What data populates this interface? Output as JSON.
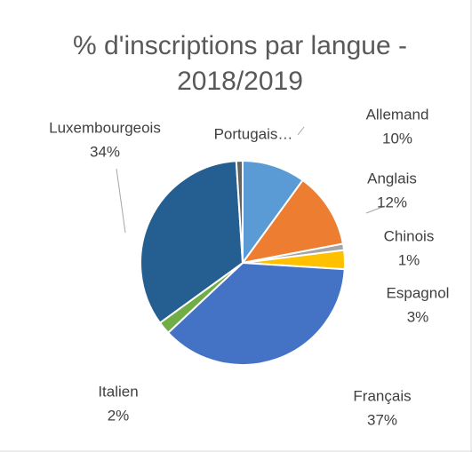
{
  "chart_data": {
    "type": "pie",
    "title": "% d'inscriptions par langue - 2018/2019",
    "categories": [
      "Allemand",
      "Anglais",
      "Chinois",
      "Espagnol",
      "Français",
      "Italien",
      "Luxembourgeois",
      "Portugais…"
    ],
    "values": [
      10,
      12,
      1,
      3,
      37,
      2,
      34,
      1
    ],
    "value_labels": [
      "10%",
      "12%",
      "1%",
      "3%",
      "37%",
      "2%",
      "34%",
      null
    ],
    "colors": [
      "#5b9bd5",
      "#ed7d31",
      "#a5a5a5",
      "#ffc000",
      "#4472c4",
      "#70ad47",
      "#255e91",
      "#636363"
    ]
  }
}
